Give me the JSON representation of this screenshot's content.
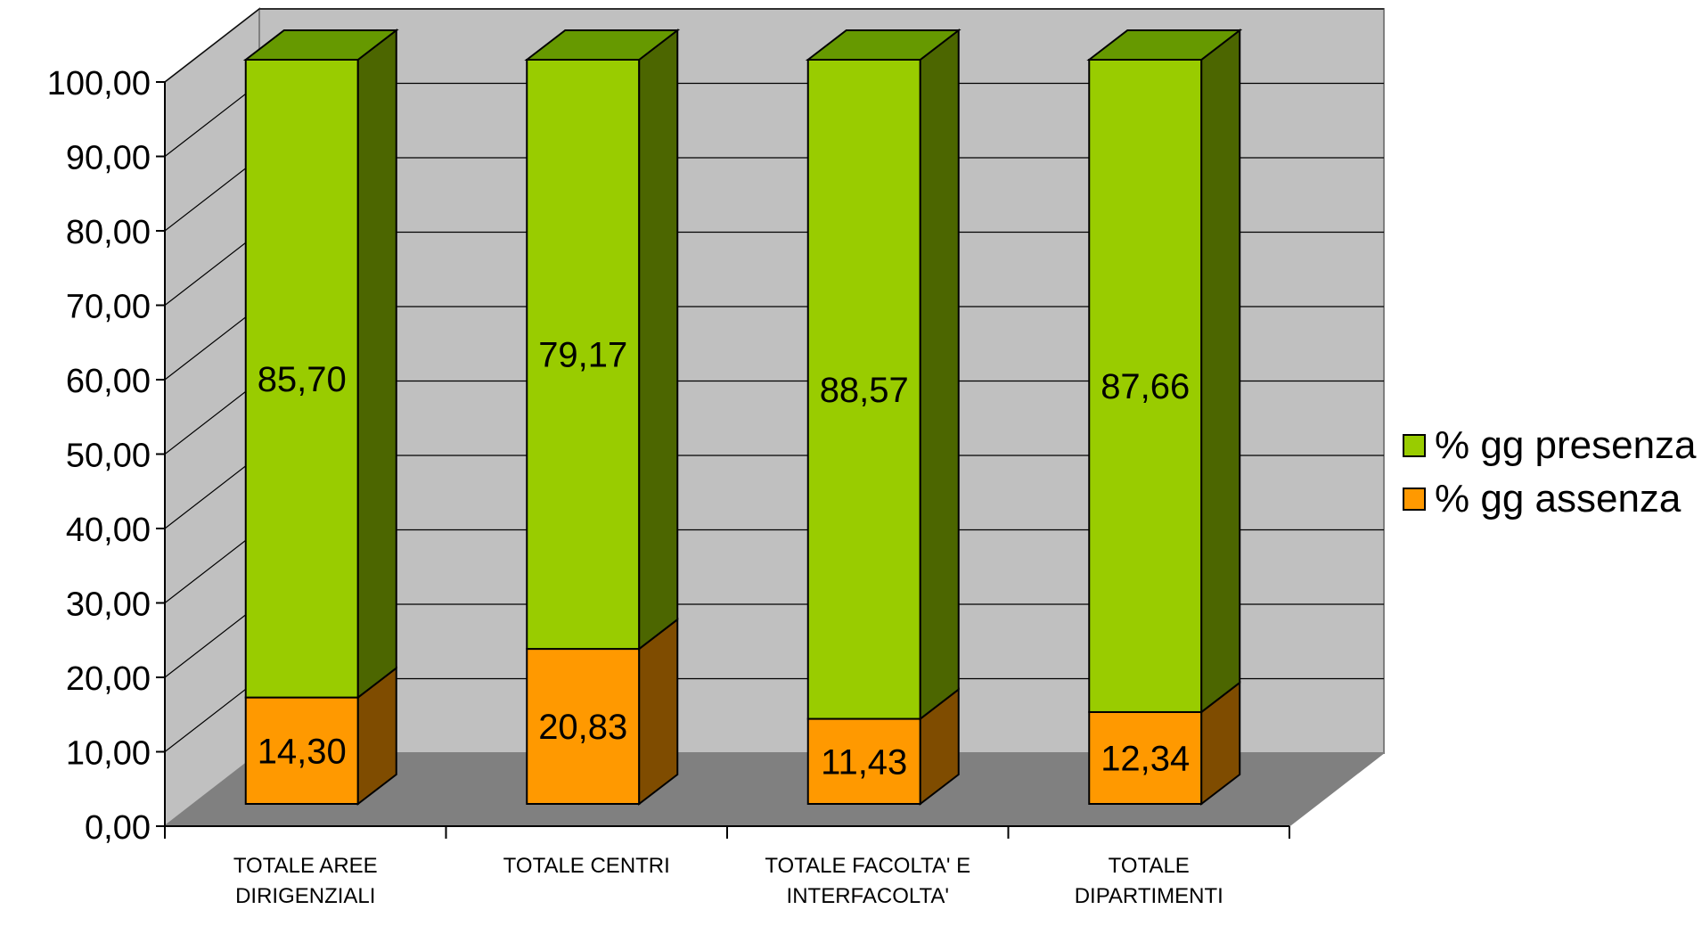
{
  "chart_data": {
    "type": "bar",
    "stacked": true,
    "three_d": true,
    "categories": [
      [
        "TOTALE AREE",
        "DIRIGENZIALI"
      ],
      [
        "TOTALE CENTRI"
      ],
      [
        "TOTALE FACOLTA' E",
        "INTERFACOLTA'"
      ],
      [
        "TOTALE",
        "DIPARTIMENTI"
      ]
    ],
    "series": [
      {
        "name": "% gg assenza",
        "values": [
          14.3,
          20.83,
          11.43,
          12.34
        ],
        "labels": [
          "14,30",
          "20,83",
          "11,43",
          "12,34"
        ],
        "color": "#ff9900",
        "side_color": "#7f4c00"
      },
      {
        "name": "% gg presenza",
        "values": [
          85.7,
          79.17,
          88.57,
          87.66
        ],
        "labels": [
          "85,70",
          "79,17",
          "88,57",
          "87,66"
        ],
        "color": "#99cc00",
        "side_color": "#4c6600"
      }
    ],
    "ylim": [
      0,
      100
    ],
    "yticks": [
      "0,00",
      "10,00",
      "20,00",
      "30,00",
      "40,00",
      "50,00",
      "60,00",
      "70,00",
      "80,00",
      "90,00",
      "100,00"
    ],
    "grid": true,
    "legend_position": "right",
    "colors": {
      "wall": "#c0c0c0",
      "floor": "#808080",
      "gridline": "#000000"
    }
  }
}
